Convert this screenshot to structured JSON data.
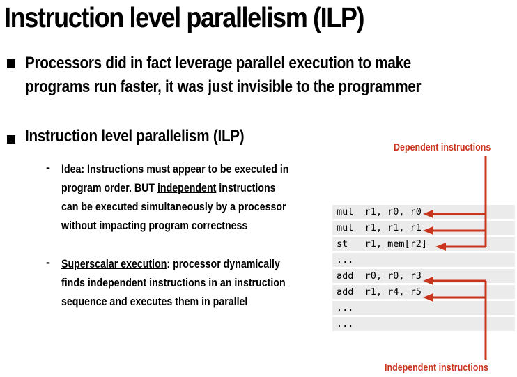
{
  "title": "Instruction level parallelism (ILP)",
  "bullet1": {
    "line1": "Processors did in fact leverage parallel execution to make",
    "line2": "programs run faster, it was just invisible to the programmer"
  },
  "bullet2": {
    "heading": "Instruction level parallelism (ILP)",
    "sub1": {
      "dash": "-",
      "l1_a": "Idea: Instructions must ",
      "l1_u": "appear",
      "l1_b": " to be executed in",
      "l2_a": "program order.  BUT ",
      "l2_u": "independent",
      "l2_b": " instructions",
      "l3": "can be executed simultaneously by a processor",
      "l4": "without impacting program correctness"
    },
    "sub2": {
      "dash": "-",
      "l1_u": "Superscalar execution",
      "l1_b": ": processor dynamically",
      "l2": "finds independent instructions in an instruction",
      "l3": "sequence and executes them in parallel"
    }
  },
  "labels": {
    "dependent": "Dependent instructions",
    "independent": "Independent instructions"
  },
  "code": [
    "mul  r1, r0, r0",
    "mul  r1, r1, r1",
    "st   r1, mem[r2]",
    "...",
    "add  r0, r0, r3",
    "add  r1, r4, r5",
    "...",
    "..."
  ],
  "colors": {
    "accent_red": "#c9351f",
    "code_bg": "#ebebeb"
  }
}
